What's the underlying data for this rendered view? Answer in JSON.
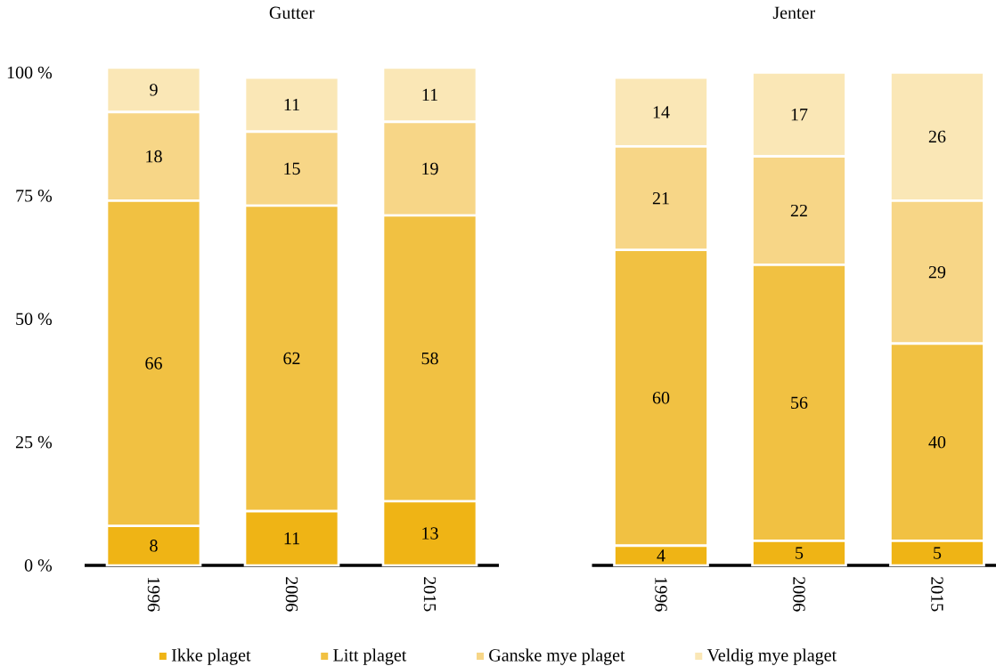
{
  "chart_data": [
    {
      "type": "bar",
      "title": "Gutter",
      "stacked": true,
      "data_labels": true,
      "legend": "bottom",
      "categories": [
        "1996",
        "2006",
        "2015"
      ],
      "ylim": [
        0,
        101
      ],
      "yticks": [
        {
          "value": 0,
          "label": "0 %"
        },
        {
          "value": 25,
          "label": "25 %"
        },
        {
          "value": 50,
          "label": "50 %"
        },
        {
          "value": 75,
          "label": "75 %"
        },
        {
          "value": 100,
          "label": "100 %"
        }
      ],
      "series": [
        {
          "name": "Ikke plaget",
          "color": "#efb415",
          "values": [
            8,
            11,
            13
          ]
        },
        {
          "name": "Litt plaget",
          "color": "#f1c142",
          "values": [
            66,
            62,
            58
          ]
        },
        {
          "name": "Ganske mye plaget",
          "color": "#f7d687",
          "values": [
            18,
            15,
            19
          ]
        },
        {
          "name": "Veldig mye plaget",
          "color": "#fae7b6",
          "values": [
            9,
            11,
            11
          ]
        }
      ]
    },
    {
      "type": "bar",
      "title": "Jenter",
      "stacked": true,
      "data_labels": true,
      "tick_labels": "x",
      "categories": [
        "1996",
        "2006",
        "2015"
      ],
      "ylim": [
        0,
        101
      ],
      "series": [
        {
          "color": "#efb415",
          "values": [
            4,
            5,
            5
          ]
        },
        {
          "color": "#f1c142",
          "values": [
            60,
            56,
            40
          ]
        },
        {
          "color": "#f7d687",
          "values": [
            21,
            22,
            29
          ]
        },
        {
          "color": "#fae7b6",
          "values": [
            14,
            17,
            26
          ]
        }
      ]
    }
  ]
}
